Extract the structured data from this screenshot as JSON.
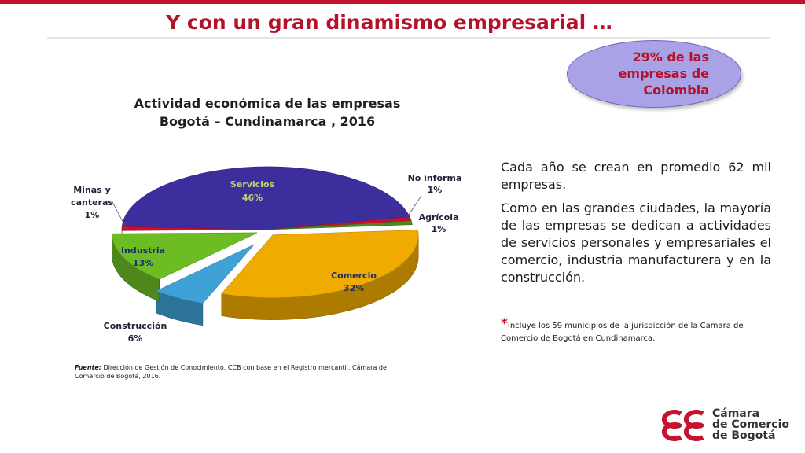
{
  "header": {
    "title": "Y con un gran dinamismo empresarial …"
  },
  "callout": {
    "text": "29%  de las empresas de Colombia"
  },
  "chart_data": {
    "type": "pie",
    "title_lines": [
      "Actividad económica de las empresas",
      "Bogotá – Cundinamarca , 2016"
    ],
    "slices": [
      {
        "name": "Servicios",
        "value": 46,
        "label": "46%",
        "color": "#3d2e9e"
      },
      {
        "name": "No informa",
        "value": 1,
        "label": "1%",
        "color": "#c8102e"
      },
      {
        "name": "Agrícola",
        "value": 1,
        "label": "1%",
        "color": "#4a8a1c"
      },
      {
        "name": "Comercio",
        "value": 32,
        "label": "32%",
        "color": "#f0ab00"
      },
      {
        "name": "Construcción",
        "value": 6,
        "label": "6%",
        "color": "#3fa1d6"
      },
      {
        "name": "Industria",
        "value": 13,
        "label": "13%",
        "color": "#6cbd24"
      },
      {
        "name": "Minas y canteras",
        "value": 1,
        "label": "1%",
        "color": "#c8102e"
      }
    ]
  },
  "source": {
    "label": "Fuente:",
    "text": "Dirección de Gestión de Conocimiento, CCB con base en el Registro mercantil, Cámara de Comercio  de Bogotá, 2016."
  },
  "body": {
    "p1": "Cada año se crean en promedio 62 mil empresas.",
    "p2": "Como en las grandes ciudades, la mayoría de las empresas se dedican a actividades de servicios personales y empresariales el comercio, industria manufacturera y en la construcción."
  },
  "footnote": {
    "asterisk": "*",
    "text": "Incluye los 59 municipios de la jurisdicción de la Cámara de Comercio de Bogotá en Cundinamarca."
  },
  "logo": {
    "line1": "Cámara",
    "line2": "de Comercio",
    "line3": "de Bogotá",
    "color": "#c4122f"
  }
}
